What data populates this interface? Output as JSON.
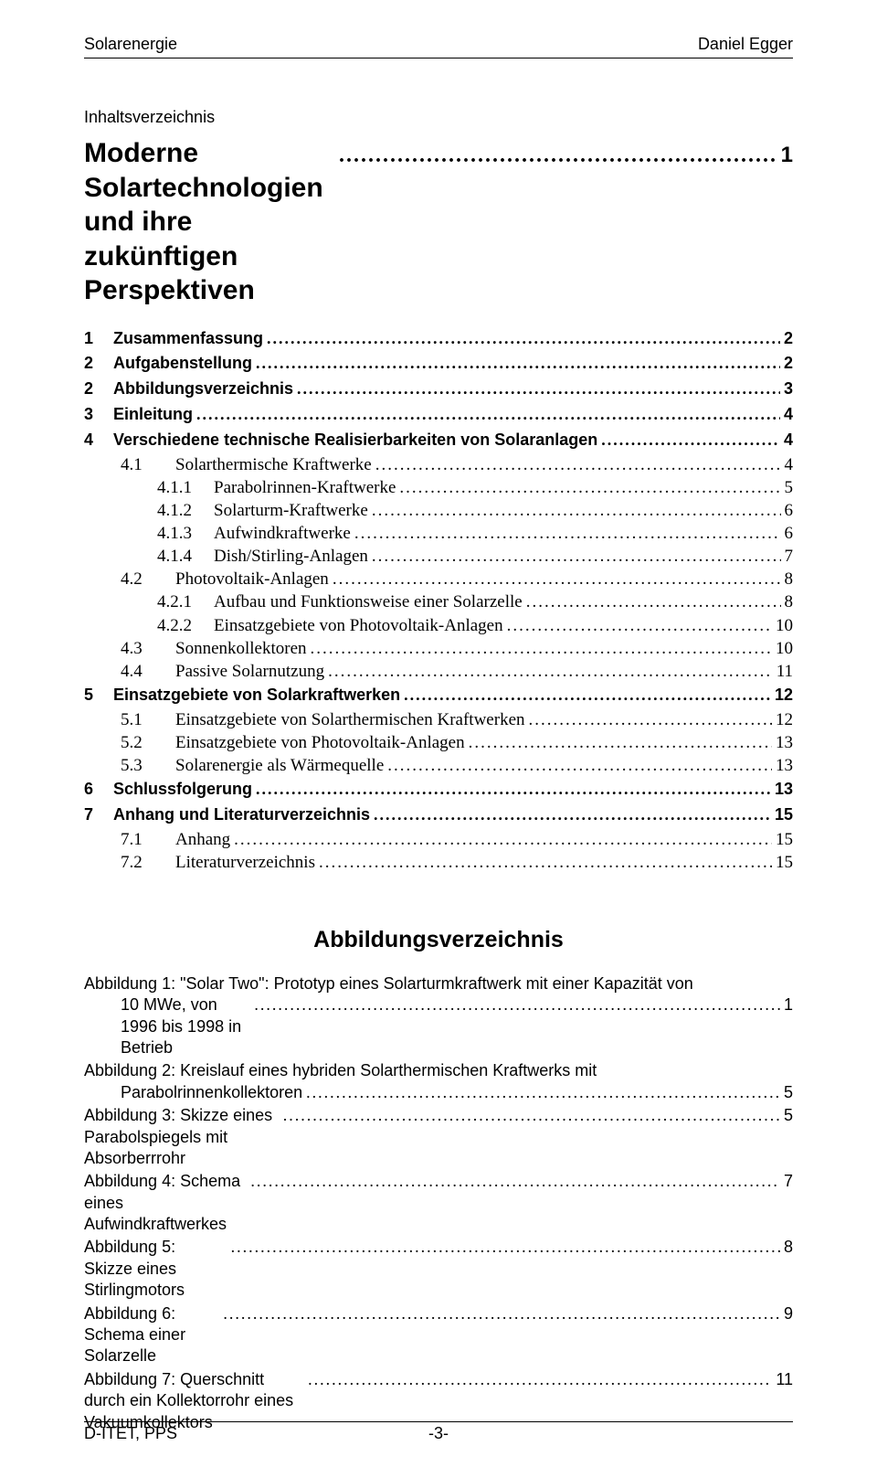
{
  "header": {
    "left": "Solarenergie",
    "right": "Daniel Egger"
  },
  "footer": {
    "left": "D-ITET, PPS",
    "center": "-3-"
  },
  "toc_heading": "Inhaltsverzeichnis",
  "doc_title": "Moderne Solartechnologien und ihre zukünftigen Perspektiven",
  "doc_title_page": "1",
  "toc": [
    {
      "lvl": 1,
      "num": "1",
      "label": "Zusammenfassung",
      "page": "2"
    },
    {
      "lvl": 1,
      "num": "2",
      "label": "Aufgabenstellung",
      "page": "2"
    },
    {
      "lvl": 1,
      "num": "2",
      "label": "Abbildungsverzeichnis",
      "page": "3"
    },
    {
      "lvl": 1,
      "num": "3",
      "label": "Einleitung",
      "page": "4"
    },
    {
      "lvl": 1,
      "num": "4",
      "label": "Verschiedene technische Realisierbarkeiten von Solaranlagen",
      "page": "4"
    },
    {
      "lvl": 2,
      "num": "4.1",
      "label": "Solarthermische Kraftwerke",
      "page": "4"
    },
    {
      "lvl": 3,
      "num": "4.1.1",
      "label": "Parabolrinnen-Kraftwerke",
      "page": "5"
    },
    {
      "lvl": 3,
      "num": "4.1.2",
      "label": "Solarturm-Kraftwerke",
      "page": "6"
    },
    {
      "lvl": 3,
      "num": "4.1.3",
      "label": "Aufwindkraftwerke",
      "page": "6"
    },
    {
      "lvl": 3,
      "num": "4.1.4",
      "label": "Dish/Stirling-Anlagen",
      "page": "7"
    },
    {
      "lvl": 2,
      "num": "4.2",
      "label": "Photovoltaik-Anlagen",
      "page": "8"
    },
    {
      "lvl": 3,
      "num": "4.2.1",
      "label": "Aufbau und Funktionsweise einer Solarzelle",
      "page": "8"
    },
    {
      "lvl": 3,
      "num": "4.2.2",
      "label": "Einsatzgebiete von Photovoltaik-Anlagen",
      "page": "10"
    },
    {
      "lvl": 2,
      "num": "4.3",
      "label": "Sonnenkollektoren",
      "page": "10"
    },
    {
      "lvl": 2,
      "num": "4.4",
      "label": "Passive Solarnutzung",
      "page": "11"
    },
    {
      "lvl": 1,
      "num": "5",
      "label": "Einsatzgebiete von Solarkraftwerken",
      "page": "12"
    },
    {
      "lvl": 2,
      "num": "5.1",
      "label": "Einsatzgebiete von Solarthermischen Kraftwerken",
      "page": "12"
    },
    {
      "lvl": 2,
      "num": "5.2",
      "label": "Einsatzgebiete von Photovoltaik-Anlagen",
      "page": "13"
    },
    {
      "lvl": 2,
      "num": "5.3",
      "label": "Solarenergie als Wärmequelle",
      "page": "13"
    },
    {
      "lvl": 1,
      "num": "6",
      "label": "Schlussfolgerung",
      "page": "13"
    },
    {
      "lvl": 1,
      "num": "7",
      "label": "Anhang und Literaturverzeichnis",
      "page": "15"
    },
    {
      "lvl": 2,
      "num": "7.1",
      "label": "Anhang",
      "page": "15"
    },
    {
      "lvl": 2,
      "num": "7.2",
      "label": "Literaturverzeichnis",
      "page": "15"
    }
  ],
  "lof_heading": "Abbildungsverzeichnis",
  "lof": [
    {
      "lines": [
        "Abbildung 1: \"Solar Two\": Prototyp eines Solarturmkraftwerk mit einer Kapazität von",
        "10 MWe, von 1996 bis 1998 in Betrieb"
      ],
      "page": "1"
    },
    {
      "lines": [
        "Abbildung 2: Kreislauf eines hybriden Solarthermischen Kraftwerks mit",
        "Parabolrinnenkollektoren"
      ],
      "page": "5"
    },
    {
      "lines": [
        "Abbildung 3: Skizze eines Parabolspiegels mit Absorberrrohr"
      ],
      "page": "5"
    },
    {
      "lines": [
        "Abbildung 4: Schema eines Aufwindkraftwerkes"
      ],
      "page": "7"
    },
    {
      "lines": [
        "Abbildung 5: Skizze eines Stirlingmotors"
      ],
      "page": "8"
    },
    {
      "lines": [
        "Abbildung 6: Schema einer Solarzelle"
      ],
      "page": "9"
    },
    {
      "lines": [
        "Abbildung 7: Querschnitt durch ein Kollektorrohr eines Vakuumkollektors"
      ],
      "page": "11"
    }
  ]
}
